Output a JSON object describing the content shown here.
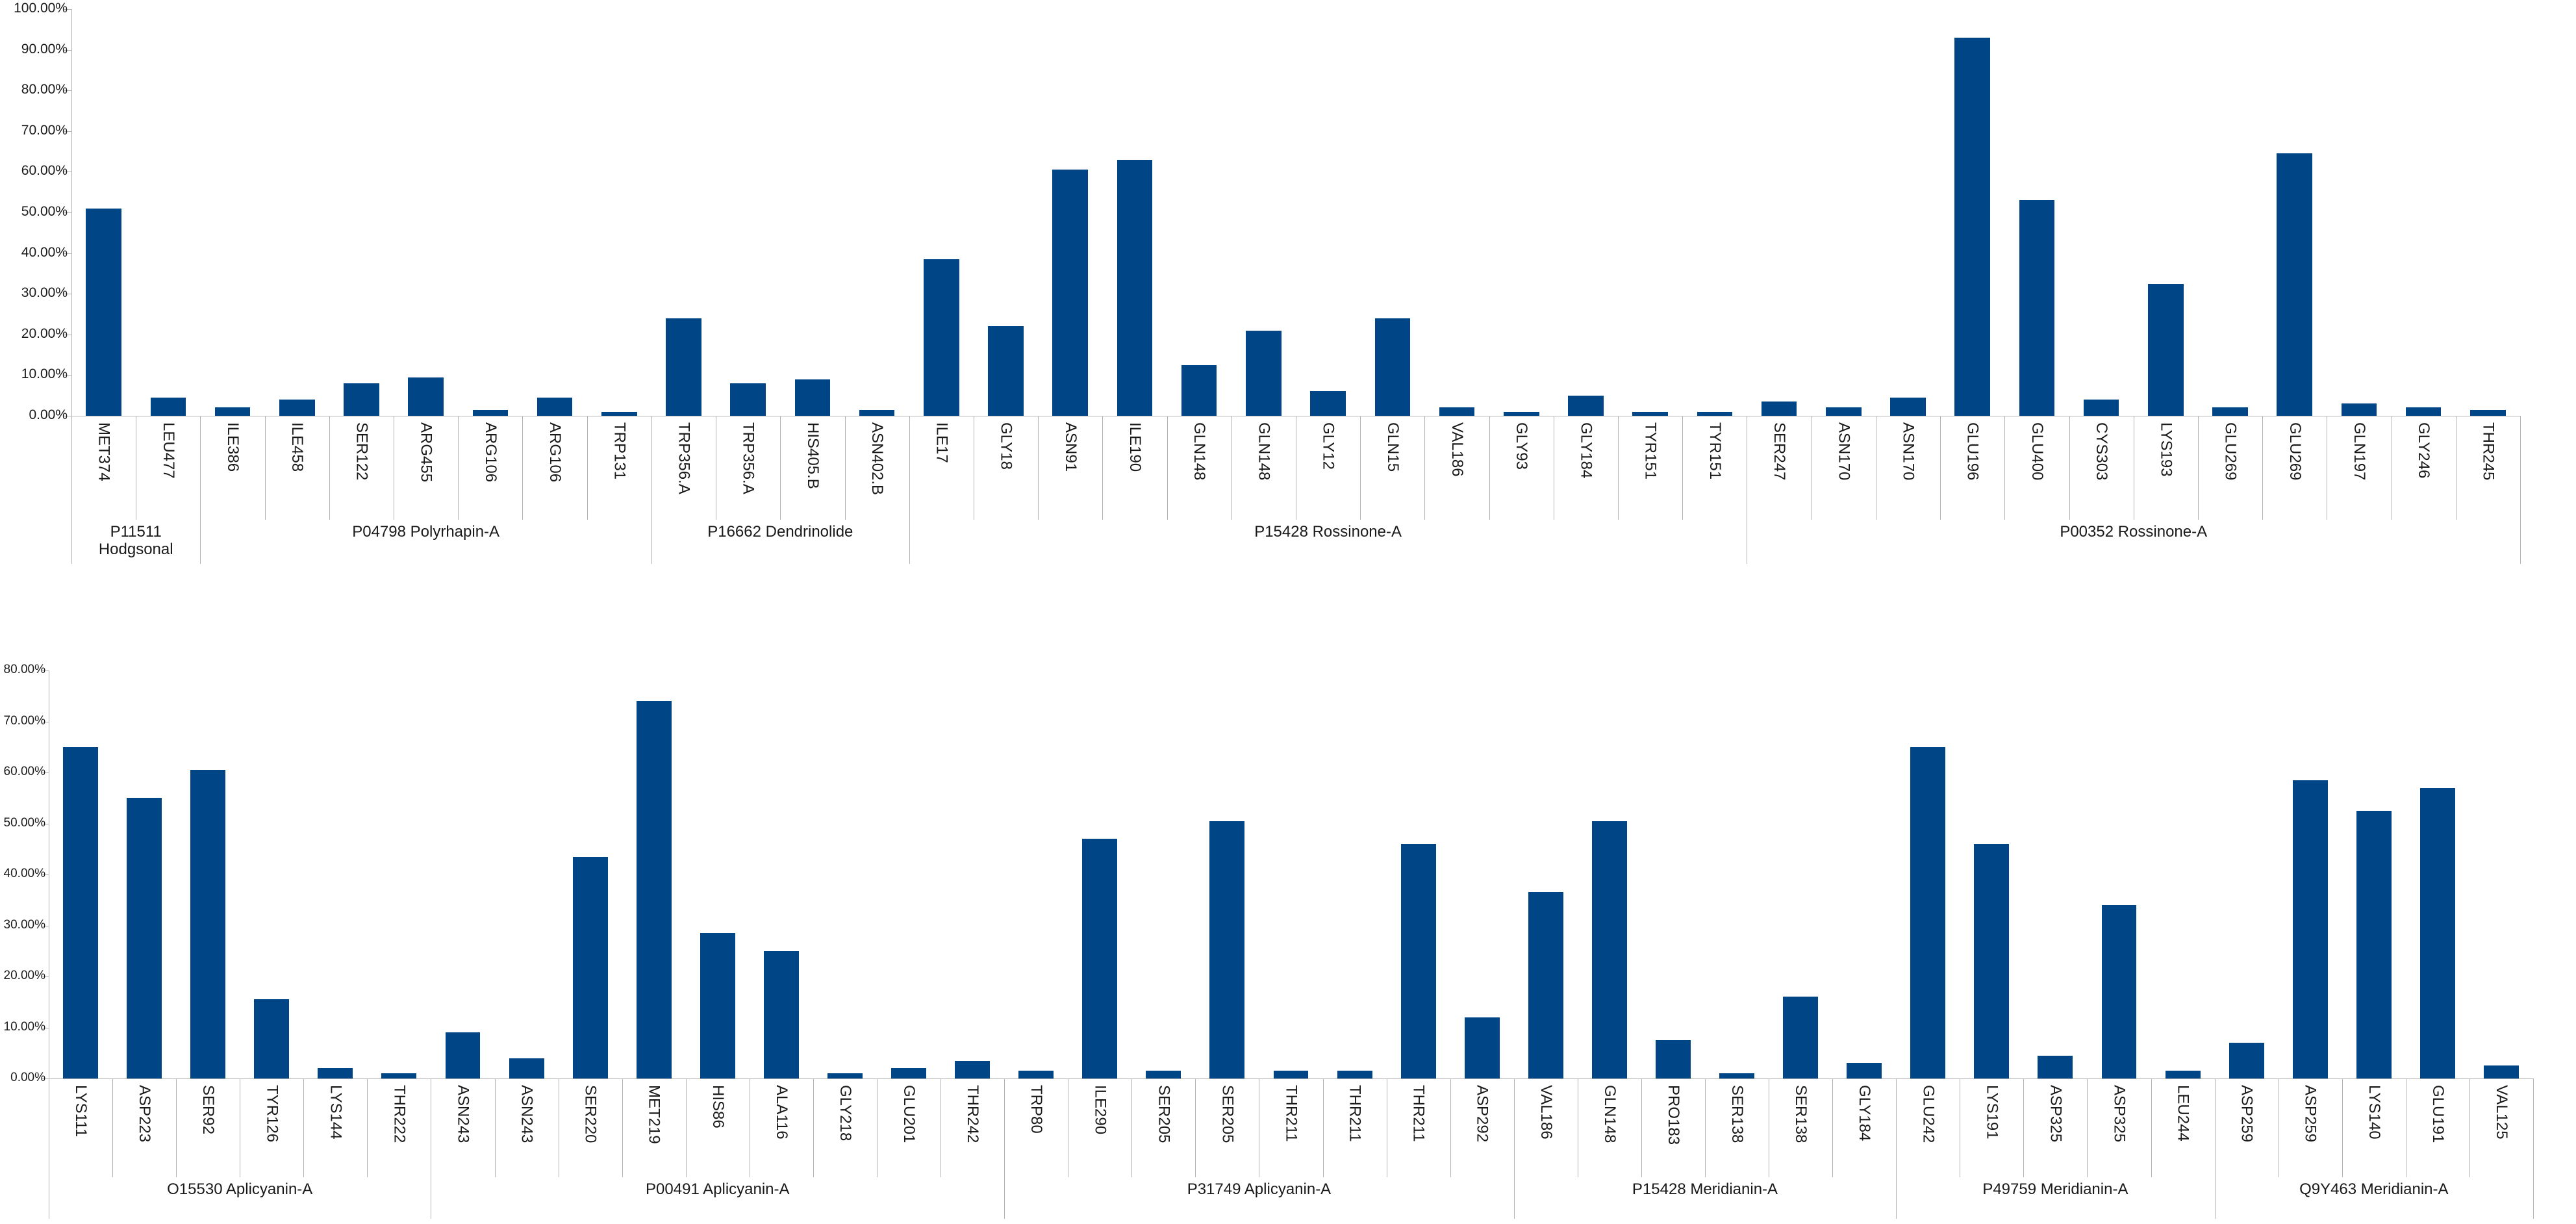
{
  "colors": {
    "bar": "#004586",
    "axis_line": "#b3b3b3",
    "text": "#1a1a1a",
    "background": "#ffffff"
  },
  "chart_data": [
    {
      "type": "bar",
      "title": "",
      "xlabel": "",
      "ylabel": "",
      "ylim": [
        0,
        100
      ],
      "ytick_step": 10,
      "grid": false,
      "legend": "none",
      "ytick_labels": [
        "100.00%",
        "90.00%",
        "80.00%",
        "70.00%",
        "60.00%",
        "50.00%",
        "40.00%",
        "30.00%",
        "20.00%",
        "10.00%",
        "0.00%"
      ],
      "groups": [
        {
          "label": "P11511 Hodgsonal",
          "categories": [
            "MET374",
            "LEU477"
          ],
          "values": [
            51,
            4.5
          ]
        },
        {
          "label": "P04798 Polyrhapin-A",
          "categories": [
            "ILE386",
            "ILE458",
            "SER122",
            "ARG455",
            "ARG106",
            "ARG106",
            "TRP131"
          ],
          "values": [
            2,
            4,
            8,
            9.5,
            1.5,
            4.5,
            1
          ]
        },
        {
          "label": "P16662 Dendrinolide",
          "categories": [
            "TRP356.A",
            "TRP356.A",
            "HIS405.B",
            "ASN402.B"
          ],
          "values": [
            24,
            8,
            9,
            1.5
          ]
        },
        {
          "label": "P15428 Rossinone-A",
          "categories": [
            "ILE17",
            "GLY18",
            "ASN91",
            "ILE190",
            "GLN148",
            "GLN148",
            "GLY12",
            "GLN15",
            "VAL186",
            "GLY93",
            "GLY184",
            "TYR151",
            "TYR151"
          ],
          "values": [
            38.5,
            22,
            60.5,
            63,
            12.5,
            21,
            6,
            24,
            2,
            1,
            5,
            1,
            1
          ]
        },
        {
          "label": "P00352 Rossinone-A",
          "categories": [
            "SER247",
            "ASN170",
            "ASN170",
            "GLU196",
            "GLU400",
            "CYS303",
            "LYS193",
            "GLU269",
            "GLU269",
            "GLN197",
            "GLY246",
            "THR245"
          ],
          "values": [
            3.5,
            2,
            4.5,
            93,
            53,
            4,
            32.5,
            2,
            64.5,
            3,
            2,
            1.5
          ]
        }
      ]
    },
    {
      "type": "bar",
      "title": "",
      "xlabel": "",
      "ylabel": "",
      "ylim": [
        0,
        80
      ],
      "ytick_step": 10,
      "grid": false,
      "legend": "none",
      "ytick_labels": [
        "80.00%",
        "70.00%",
        "60.00%",
        "50.00%",
        "40.00%",
        "30.00%",
        "20.00%",
        "10.00%",
        "0.00%"
      ],
      "groups": [
        {
          "label": "O15530 Aplicyanin-A",
          "categories": [
            "LYS111",
            "ASP223",
            "SER92",
            "TYR126",
            "LYS144",
            "THR222"
          ],
          "values": [
            65,
            55,
            60.5,
            15.5,
            2,
            1
          ]
        },
        {
          "label": "P00491 Aplicyanin-A",
          "categories": [
            "ASN243",
            "ASN243",
            "SER220",
            "MET219",
            "HIS86",
            "ALA116",
            "GLY218",
            "GLU201",
            "THR242"
          ],
          "values": [
            9,
            4,
            43.5,
            74,
            28.5,
            25,
            1,
            2,
            3.5
          ]
        },
        {
          "label": "P31749 Aplicyanin-A",
          "categories": [
            "TRP80",
            "ILE290",
            "SER205",
            "SER205",
            "THR211",
            "THR211",
            "THR211",
            "ASP292"
          ],
          "values": [
            1.5,
            47,
            1.5,
            50.5,
            1.5,
            1.5,
            46,
            12
          ]
        },
        {
          "label": "P15428 Meridianin-A",
          "categories": [
            "VAL186",
            "GLN148",
            "PRO183",
            "SER138",
            "SER138",
            "GLY184"
          ],
          "values": [
            36.5,
            50.5,
            7.5,
            1,
            16,
            3
          ]
        },
        {
          "label": "P49759 Meridianin-A",
          "categories": [
            "GLU242",
            "LYS191",
            "ASP325",
            "ASP325",
            "LEU244"
          ],
          "values": [
            65,
            46,
            4.5,
            34,
            1.5
          ]
        },
        {
          "label": "Q9Y463 Meridianin-A",
          "categories": [
            "ASP259",
            "ASP259",
            "LYS140",
            "GLU191",
            "VAL125"
          ],
          "values": [
            7,
            58.5,
            52.5,
            57,
            2.5
          ]
        }
      ]
    }
  ]
}
